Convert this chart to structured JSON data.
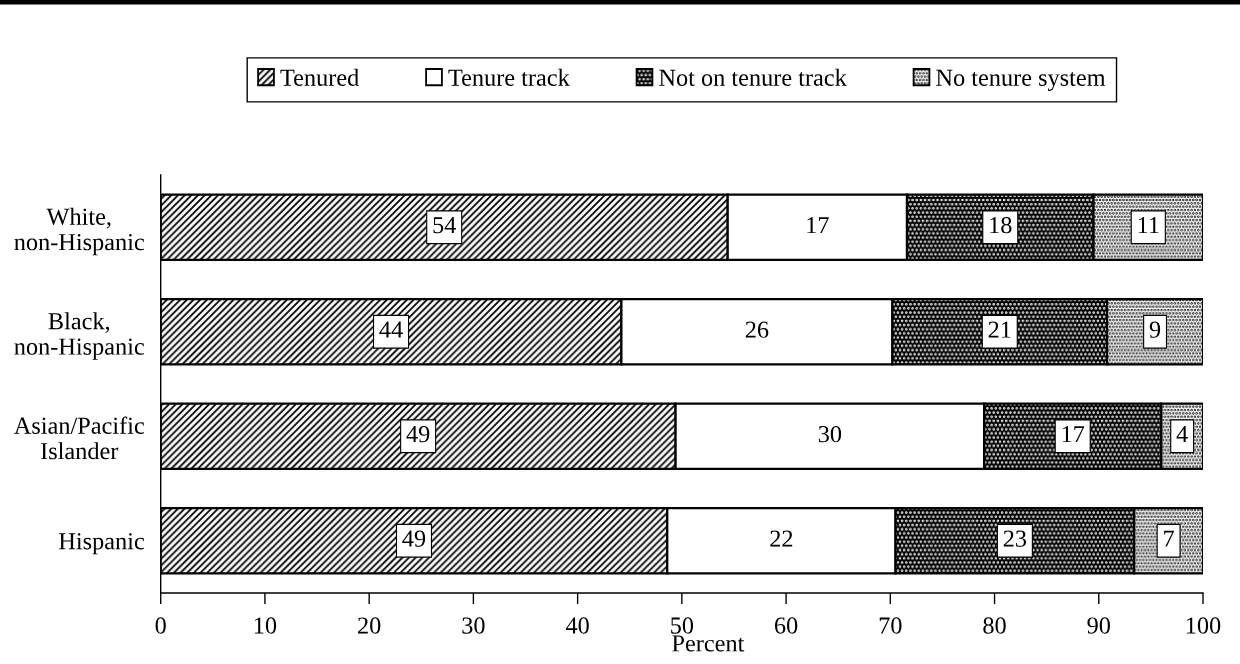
{
  "chart_data": {
    "type": "bar",
    "orientation": "horizontal",
    "stacked": true,
    "categories": [
      "White,\nnon-Hispanic",
      "Black,\nnon-Hispanic",
      "Asian/Pacific\nIslander",
      "Hispanic"
    ],
    "series": [
      {
        "name": "Tenured",
        "color": "#000000",
        "values": [
          54.4,
          44.2,
          49.4,
          48.6
        ],
        "value_labels": [
          "54",
          "44",
          "49",
          "49"
        ]
      },
      {
        "name": "Tenure track",
        "color": "#ffffff",
        "values": [
          17.2,
          26.0,
          29.6,
          21.9
        ],
        "value_labels": [
          "17",
          "26",
          "30",
          "22"
        ]
      },
      {
        "name": "Not on tenure track",
        "color": "#000000",
        "values": [
          17.9,
          20.6,
          17.0,
          22.9
        ],
        "value_labels": [
          "18",
          "21",
          "17",
          "23"
        ]
      },
      {
        "name": "No tenure system",
        "color": "#000000",
        "values": [
          10.5,
          9.2,
          4.0,
          6.6
        ],
        "value_labels": [
          "11",
          "9",
          "4",
          "7"
        ]
      }
    ],
    "xlim": [
      0,
      100
    ],
    "xticks": [
      0,
      10,
      20,
      30,
      40,
      50,
      60,
      70,
      80,
      90,
      100
    ],
    "xlabel": "Percent",
    "legend": "top"
  }
}
